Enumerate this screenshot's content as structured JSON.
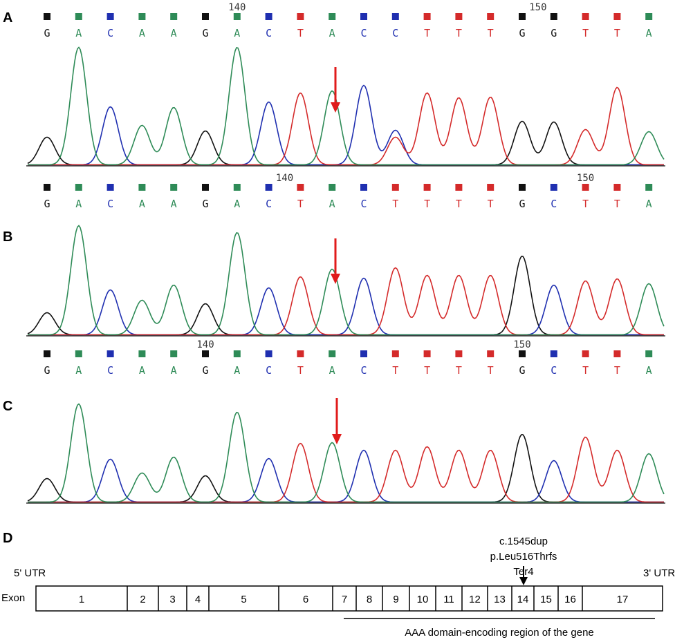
{
  "colors": {
    "A": "#2e8b57",
    "C": "#1f2fb0",
    "G": "#111111",
    "T": "#d42a2a",
    "arrow": "#e01b1b"
  },
  "panels": [
    {
      "label": "A",
      "sequence": [
        "G",
        "A",
        "C",
        "A",
        "A",
        "G",
        "A",
        "C",
        "T",
        "A",
        "C",
        "C",
        "T",
        "T",
        "T",
        "G",
        "G",
        "T",
        "T",
        "A"
      ],
      "position_labels": [
        {
          "text": "140",
          "base_index": 6
        },
        {
          "text": "150",
          "base_index": 15.5
        }
      ]
    },
    {
      "label": "B",
      "sequence": [
        "G",
        "A",
        "C",
        "A",
        "A",
        "G",
        "A",
        "C",
        "T",
        "A",
        "C",
        "T",
        "T",
        "T",
        "T",
        "G",
        "C",
        "T",
        "T",
        "A"
      ],
      "position_labels": [
        {
          "text": "140",
          "base_index": 7.5
        },
        {
          "text": "150",
          "base_index": 17
        }
      ]
    },
    {
      "label": "C",
      "sequence": [
        "G",
        "A",
        "C",
        "A",
        "A",
        "G",
        "A",
        "C",
        "T",
        "A",
        "C",
        "T",
        "T",
        "T",
        "T",
        "G",
        "C",
        "T",
        "T",
        "A"
      ],
      "position_labels": [
        {
          "text": "140",
          "base_index": 5
        },
        {
          "text": "150",
          "base_index": 15
        }
      ]
    }
  ],
  "gene": {
    "label": "D",
    "utr5": "5' UTR",
    "utr3": "3' UTR",
    "row_label": "Exon",
    "exons": [
      "1",
      "2",
      "3",
      "4",
      "5",
      "6",
      "7",
      "8",
      "9",
      "10",
      "11",
      "12",
      "13",
      "14",
      "15",
      "16",
      "17"
    ],
    "mutation_lines": [
      "c.1545dup",
      "p.Leu516Thrfs",
      "Ter4"
    ],
    "mutation_exon": "14",
    "domain_label": "AAA domain-encoding region of the gene"
  }
}
